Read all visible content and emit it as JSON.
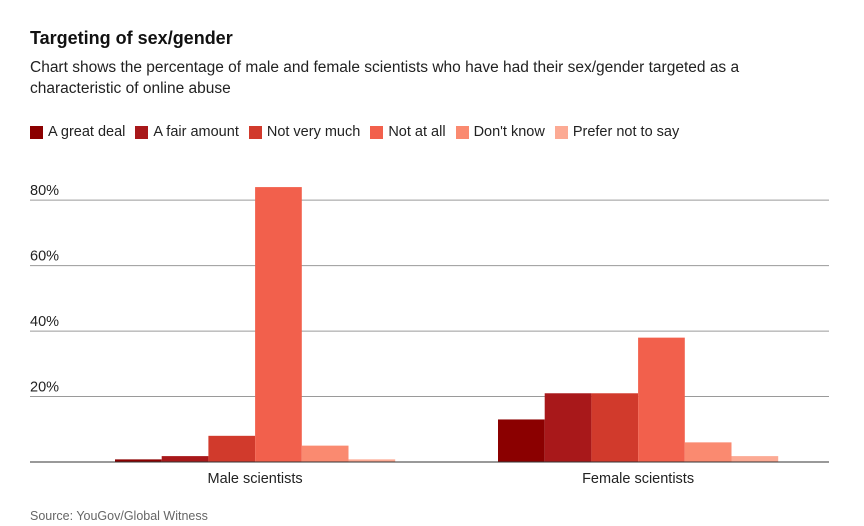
{
  "header": {
    "title": "Targeting of sex/gender",
    "subtitle": "Chart shows the percentage of male and female scientists who have had their sex/gender targeted as a characteristic of online abuse"
  },
  "legend": {
    "items": [
      {
        "label": "A great deal",
        "color": "#8b0000"
      },
      {
        "label": "A fair amount",
        "color": "#a8181a"
      },
      {
        "label": "Not very much",
        "color": "#d13a2c"
      },
      {
        "label": "Not at all",
        "color": "#f2604c"
      },
      {
        "label": "Don't know",
        "color": "#fa8a70"
      },
      {
        "label": "Prefer not to say",
        "color": "#fcaa94"
      }
    ]
  },
  "chart_data": {
    "type": "bar",
    "title": "Targeting of sex/gender",
    "categories": [
      "Male scientists",
      "Female scientists"
    ],
    "series": [
      {
        "name": "A great deal",
        "values": [
          0.8,
          13
        ],
        "color": "#8b0000"
      },
      {
        "name": "A fair amount",
        "values": [
          1.8,
          21
        ],
        "color": "#a8181a"
      },
      {
        "name": "Not very much",
        "values": [
          8,
          21
        ],
        "color": "#d13a2c"
      },
      {
        "name": "Not at all",
        "values": [
          84,
          38
        ],
        "color": "#f2604c"
      },
      {
        "name": "Don't know",
        "values": [
          5,
          6
        ],
        "color": "#fa8a70"
      },
      {
        "name": "Prefer not to say",
        "values": [
          0.8,
          1.8
        ],
        "color": "#fcaa94"
      }
    ],
    "yticks": [
      20,
      40,
      60,
      80
    ],
    "ytick_labels": [
      "20%",
      "40%",
      "60%",
      "80%"
    ],
    "ylim": [
      0,
      85
    ],
    "xlabel": "",
    "ylabel": "",
    "grid": true,
    "legend_position": "top-left"
  },
  "footer": {
    "source": "Source: YouGov/Global Witness"
  }
}
